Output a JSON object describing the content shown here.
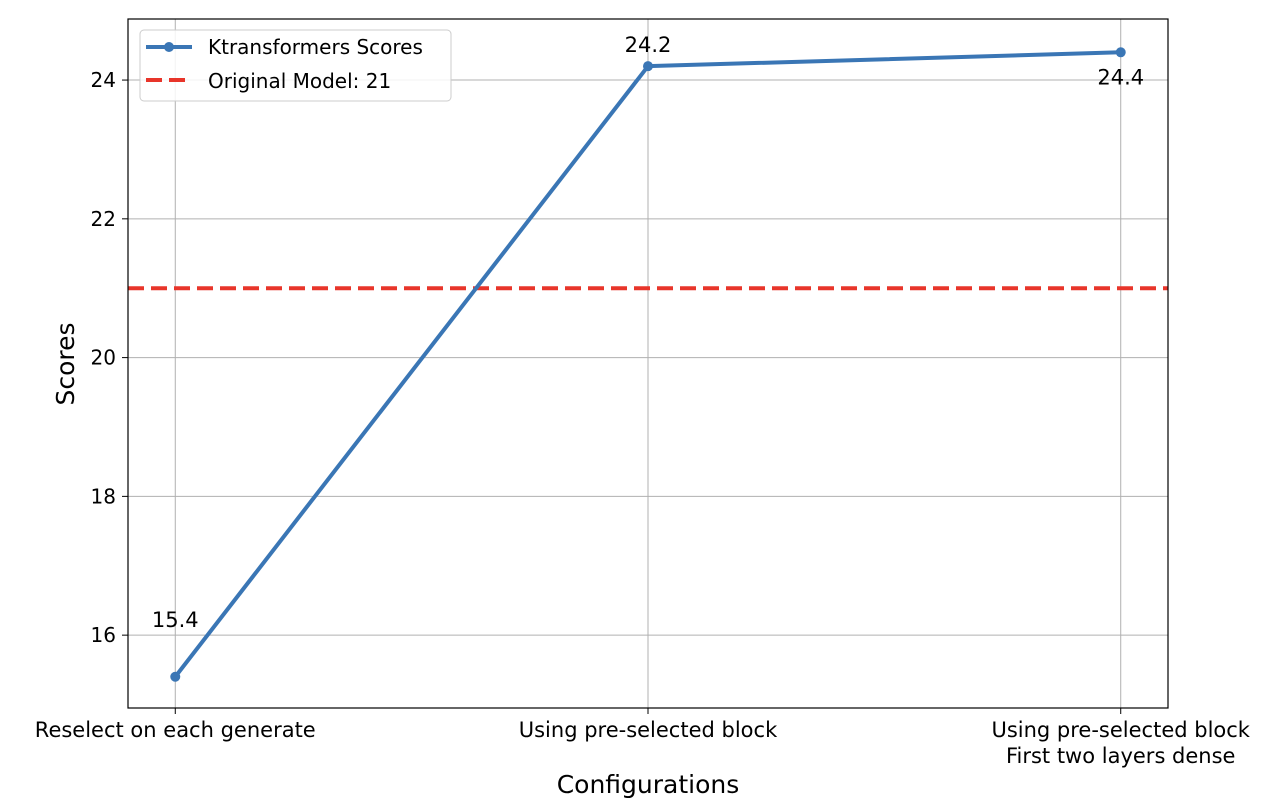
{
  "chart_data": {
    "type": "line",
    "title": "",
    "xlabel": "Configurations",
    "ylabel": "Scores",
    "categories": [
      "Reselect on each generate",
      "Using pre-selected block",
      "Using pre-selected block\nFirst two layers dense"
    ],
    "series": [
      {
        "name": "Ktransformers Scores",
        "values": [
          15.4,
          24.2,
          24.4
        ],
        "color": "#3a76b5",
        "data_labels": [
          "15.4",
          "24.2",
          "24.4"
        ]
      }
    ],
    "reference_lines": [
      {
        "name": "Original Model: 21",
        "y": 21,
        "color": "#e8352a",
        "style": "dashed"
      }
    ],
    "yticks": [
      16,
      18,
      20,
      22,
      24
    ],
    "ylim": [
      14.95,
      24.88
    ],
    "xlim": [
      -0.1,
      2.1
    ],
    "grid": true,
    "legend_position": "top-left"
  }
}
